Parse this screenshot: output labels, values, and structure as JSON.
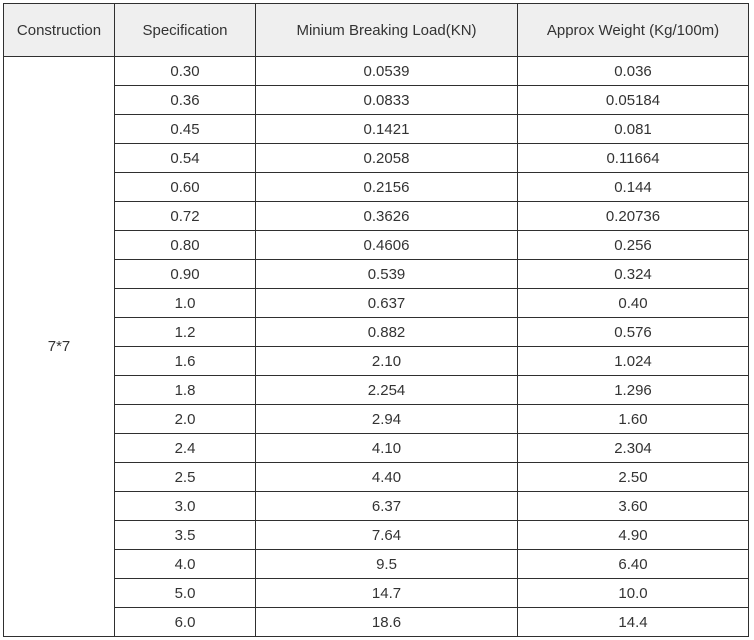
{
  "table": {
    "headers": [
      "Construction",
      "Specification",
      "Minium Breaking Load(KN)",
      "Approx Weight  (Kg/100m)"
    ],
    "construction": "7*7",
    "rows": [
      {
        "spec": "0.30",
        "load": "0.0539",
        "weight": "0.036"
      },
      {
        "spec": "0.36",
        "load": "0.0833",
        "weight": "0.05184"
      },
      {
        "spec": "0.45",
        "load": "0.1421",
        "weight": "0.081"
      },
      {
        "spec": "0.54",
        "load": "0.2058",
        "weight": "0.11664"
      },
      {
        "spec": "0.60",
        "load": "0.2156",
        "weight": "0.144"
      },
      {
        "spec": "0.72",
        "load": "0.3626",
        "weight": "0.20736"
      },
      {
        "spec": "0.80",
        "load": "0.4606",
        "weight": "0.256"
      },
      {
        "spec": "0.90",
        "load": "0.539",
        "weight": "0.324"
      },
      {
        "spec": "1.0",
        "load": "0.637",
        "weight": "0.40"
      },
      {
        "spec": "1.2",
        "load": "0.882",
        "weight": "0.576"
      },
      {
        "spec": "1.6",
        "load": "2.10",
        "weight": "1.024"
      },
      {
        "spec": "1.8",
        "load": "2.254",
        "weight": "1.296"
      },
      {
        "spec": "2.0",
        "load": "2.94",
        "weight": "1.60"
      },
      {
        "spec": "2.4",
        "load": "4.10",
        "weight": "2.304"
      },
      {
        "spec": "2.5",
        "load": "4.40",
        "weight": "2.50"
      },
      {
        "spec": "3.0",
        "load": "6.37",
        "weight": "3.60"
      },
      {
        "spec": "3.5",
        "load": "7.64",
        "weight": "4.90"
      },
      {
        "spec": "4.0",
        "load": "9.5",
        "weight": "6.40"
      },
      {
        "spec": "5.0",
        "load": "14.7",
        "weight": "10.0"
      },
      {
        "spec": "6.0",
        "load": "18.6",
        "weight": "14.4"
      }
    ]
  },
  "colors": {
    "header_background": "#efefef",
    "border": "#2f2f2f",
    "text": "#333333"
  }
}
